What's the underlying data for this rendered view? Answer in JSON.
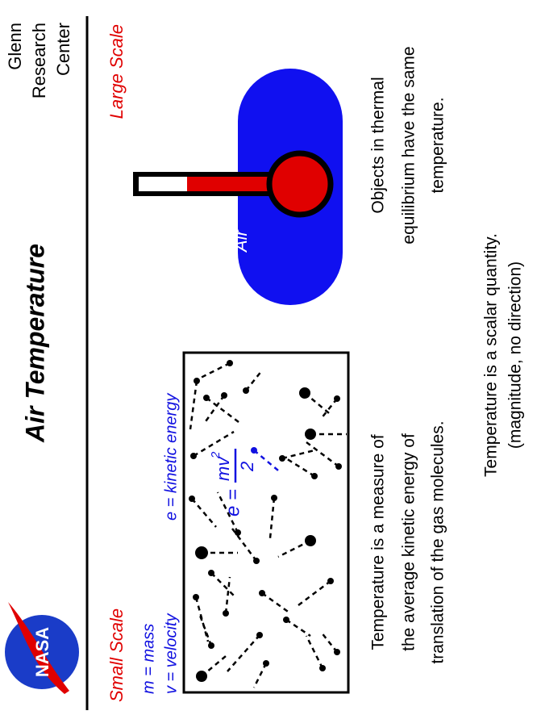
{
  "title": "Air Temperature",
  "organization": [
    "Glenn",
    "Research",
    "Center"
  ],
  "logo": "NASA",
  "small_scale": {
    "heading": "Small Scale",
    "definitions": [
      "m = mass",
      "v = velocity",
      "e = kinetic energy"
    ],
    "formula": {
      "lhs": "e =",
      "numerator": "mv",
      "exponent": "2",
      "denominator": "2"
    },
    "text": [
      "Temperature is a measure of",
      "the average kinetic energy of",
      "translation of the gas molecules."
    ]
  },
  "large_scale": {
    "heading": "Large Scale",
    "label": "Air",
    "text": [
      "Objects in thermal",
      "equilibrium have the same",
      "temperature."
    ]
  },
  "footer": [
    "Temperature is a scalar quantity.",
    "(magnitude,  no direction)"
  ]
}
